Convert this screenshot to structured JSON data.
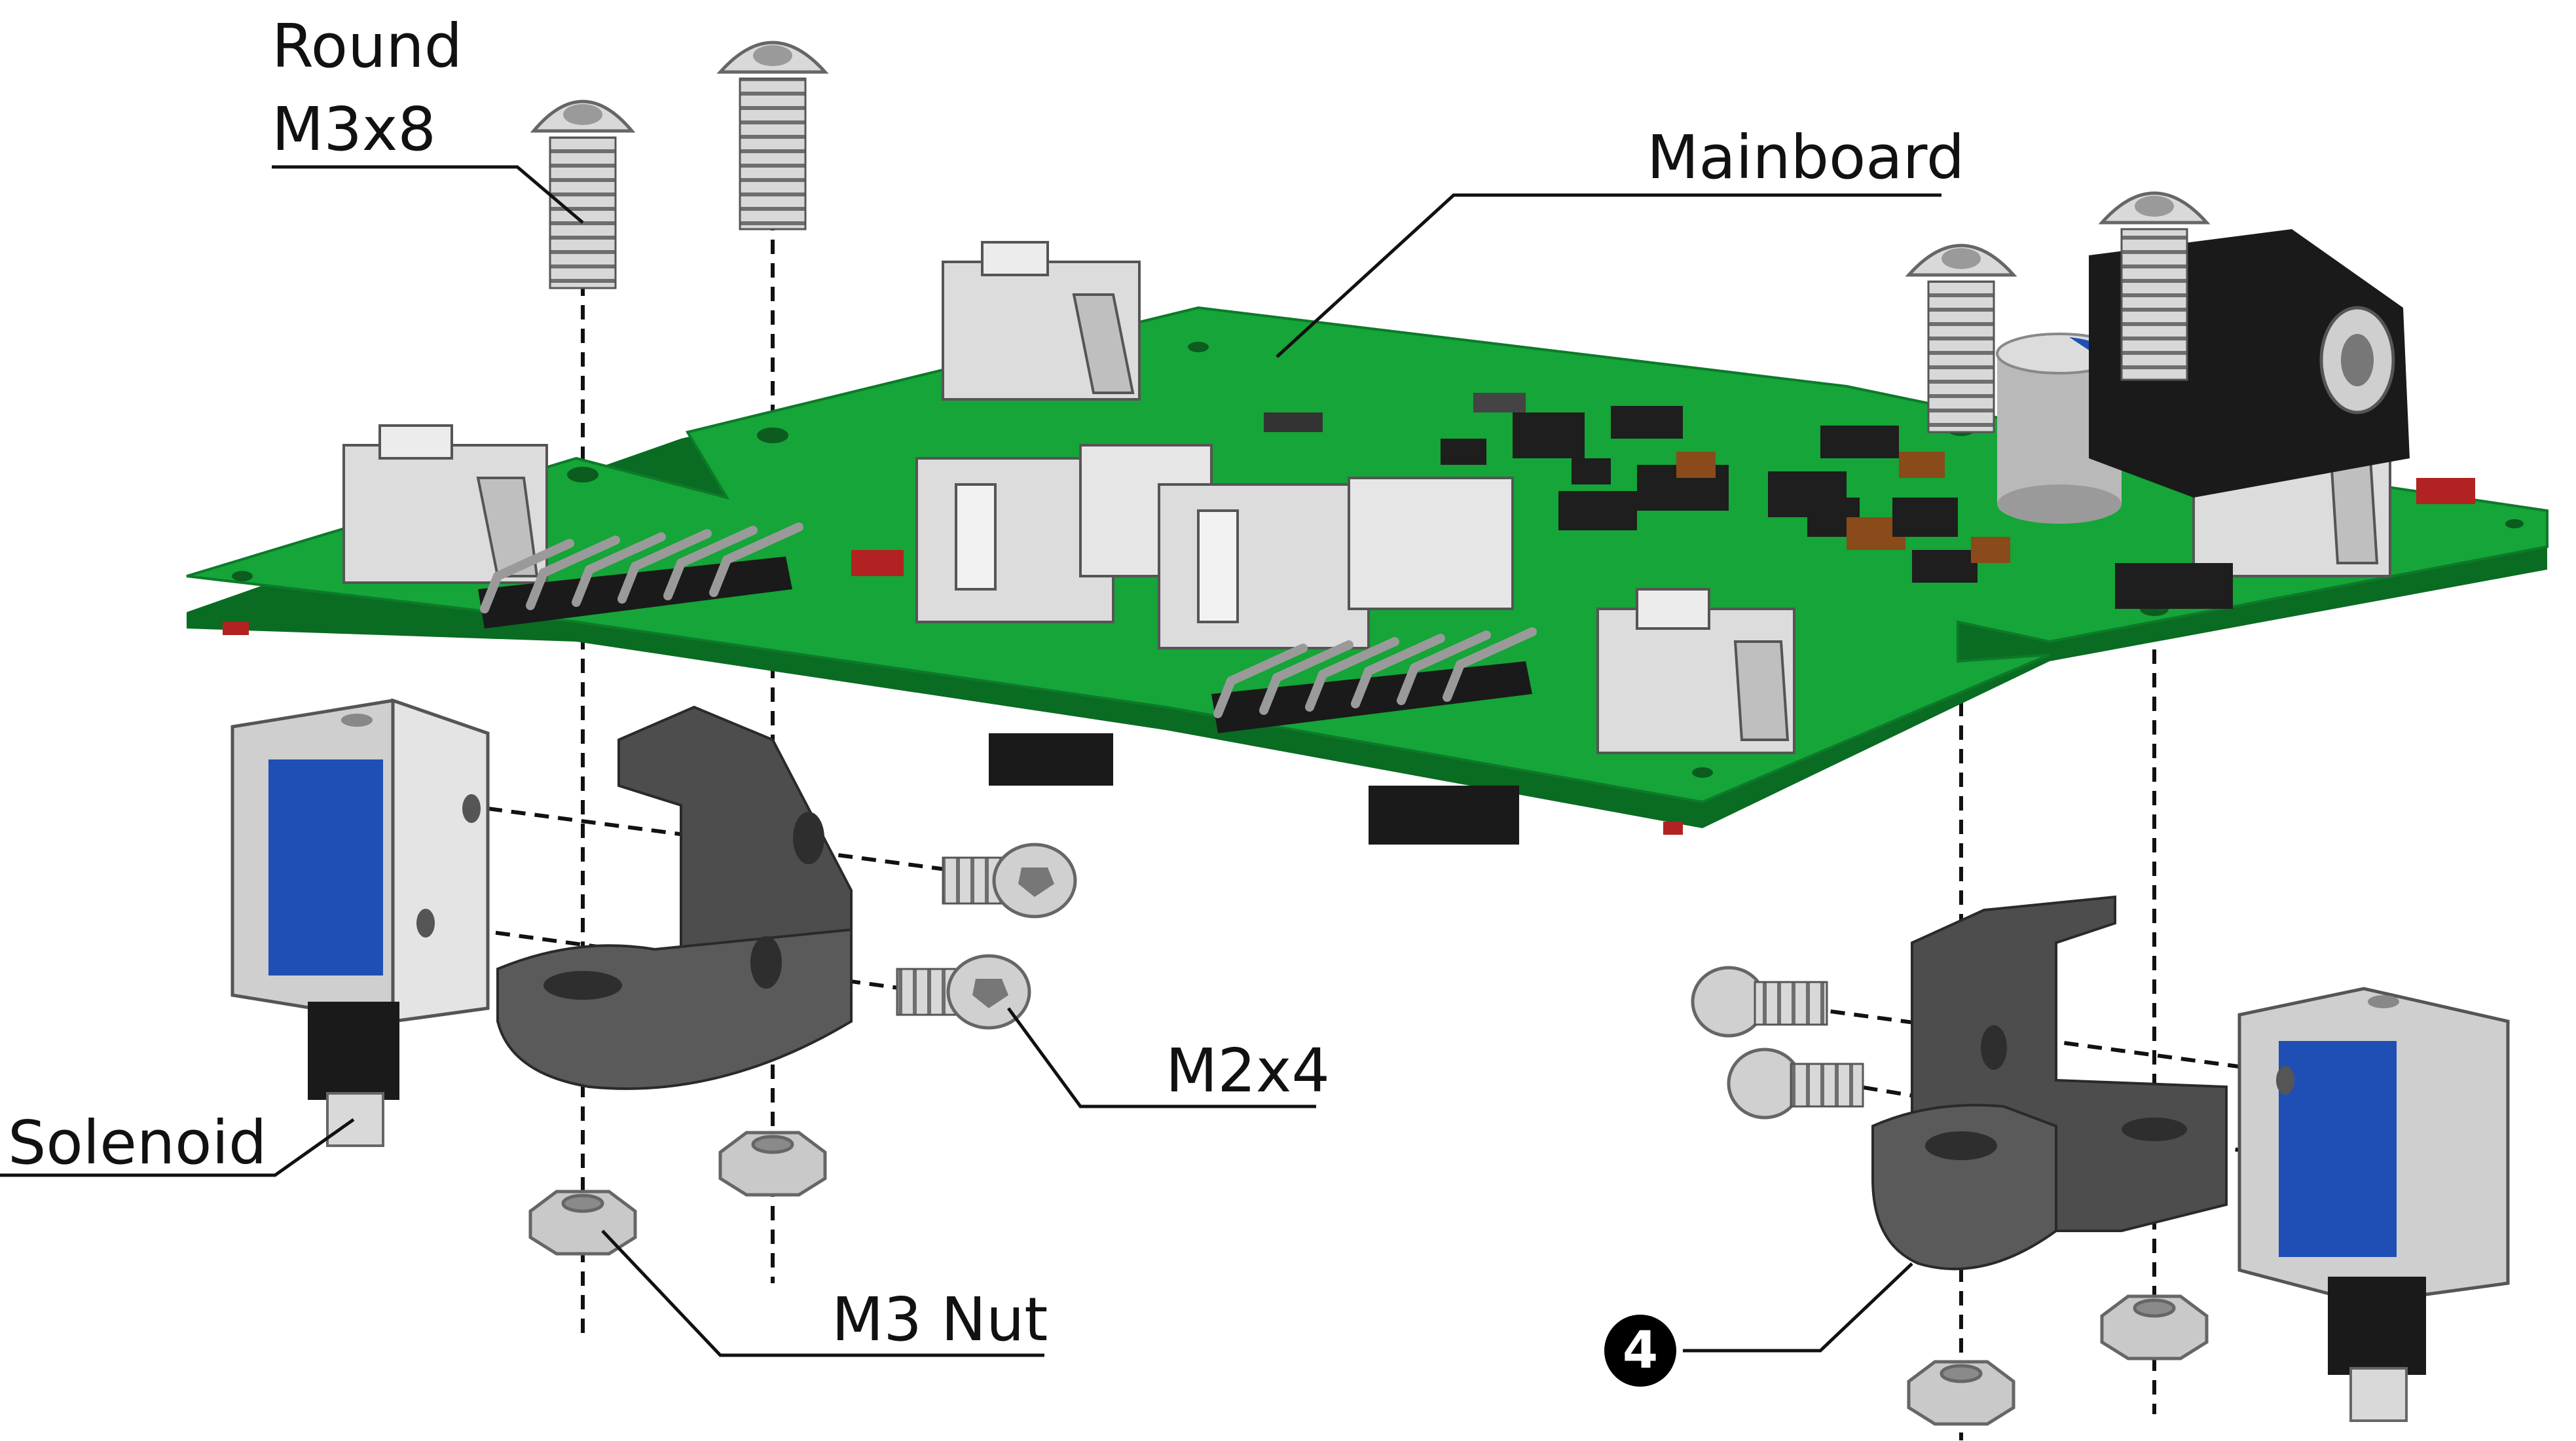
{
  "labels": {
    "round_line1": "Round",
    "round_line2": "M3x8",
    "mainboard": "Mainboard",
    "m2x4": "M2x4",
    "solenoid": "Solenoid",
    "m3_nut": "M3 Nut",
    "step_number": "4"
  },
  "colors": {
    "pcb": "#15a538",
    "pcb_edge": "#0a6b22",
    "connector": "#dcdcdc",
    "bracket": "#4d4d4d",
    "solenoid_coil": "#1f4fb5",
    "metal": "#c8c8c8",
    "ink": "#111111"
  }
}
